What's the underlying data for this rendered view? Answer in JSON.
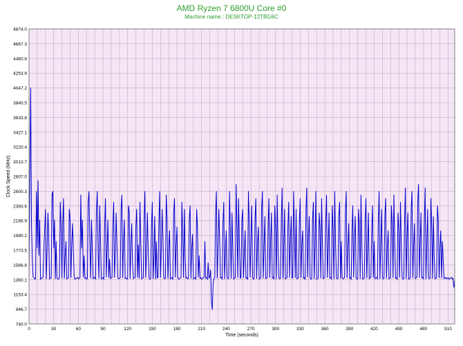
{
  "chart_data": {
    "type": "line",
    "title": "AMD Ryzen 7 6800U Core #0",
    "subtitle": "Machine name : DESKTOP-12TBG6C",
    "xlabel": "Time (seconds)",
    "ylabel": "Clock Speed (MHz)",
    "xlim": [
      0,
      518
    ],
    "ylim": [
      740.0,
      4874.0
    ],
    "x_ticks": [
      0,
      30,
      60,
      90,
      120,
      150,
      180,
      210,
      240,
      270,
      300,
      330,
      360,
      390,
      420,
      450,
      480,
      510
    ],
    "y_ticks": [
      "740.0",
      "946.7",
      "1153.4",
      "1360.1",
      "1566.8",
      "1773.5",
      "1980.2",
      "2186.9",
      "2393.6",
      "2600.3",
      "2807.0",
      "3013.7",
      "3220.4",
      "3427.1",
      "3633.8",
      "3840.5",
      "4047.2",
      "4253.9",
      "4460.6",
      "4667.3",
      "4874.0"
    ],
    "grid": true,
    "series": [
      {
        "color": "#0000cc",
        "baseline_mhz": 1380,
        "spikes": [
          [
            1,
            2800
          ],
          [
            2,
            4050
          ],
          [
            3,
            2100
          ],
          [
            4,
            1650
          ],
          [
            5,
            1400
          ],
          [
            9,
            2600
          ],
          [
            10,
            1800
          ],
          [
            11,
            2750
          ],
          [
            12,
            1700
          ],
          [
            13,
            2200
          ],
          [
            18,
            1750
          ],
          [
            19,
            2050
          ],
          [
            20,
            2350
          ],
          [
            22,
            1800
          ],
          [
            23,
            2300
          ],
          [
            24,
            1950
          ],
          [
            28,
            2550
          ],
          [
            29,
            2600
          ],
          [
            30,
            1800
          ],
          [
            31,
            2200
          ],
          [
            33,
            1900
          ],
          [
            38,
            2450
          ],
          [
            39,
            2100
          ],
          [
            41,
            2150
          ],
          [
            42,
            2500
          ],
          [
            44,
            1700
          ],
          [
            45,
            1900
          ],
          [
            49,
            2350
          ],
          [
            50,
            2200
          ],
          [
            52,
            1850
          ],
          [
            53,
            2150
          ],
          [
            54,
            1750
          ],
          [
            63,
            2550
          ],
          [
            64,
            1800
          ],
          [
            65,
            2200
          ],
          [
            67,
            1700
          ],
          [
            72,
            2450
          ],
          [
            73,
            2600
          ],
          [
            74,
            1900
          ],
          [
            76,
            2200
          ],
          [
            77,
            1800
          ],
          [
            82,
            2300
          ],
          [
            83,
            2600
          ],
          [
            84,
            1800
          ],
          [
            86,
            2400
          ],
          [
            87,
            1900
          ],
          [
            92,
            2100
          ],
          [
            93,
            2500
          ],
          [
            95,
            1800
          ],
          [
            96,
            2200
          ],
          [
            98,
            1650
          ],
          [
            102,
            2100
          ],
          [
            103,
            2450
          ],
          [
            105,
            1750
          ],
          [
            106,
            2300
          ],
          [
            107,
            1850
          ],
          [
            112,
            2350
          ],
          [
            113,
            2550
          ],
          [
            115,
            1900
          ],
          [
            116,
            2200
          ],
          [
            121,
            2400
          ],
          [
            122,
            2300
          ],
          [
            124,
            1850
          ],
          [
            125,
            2150
          ],
          [
            126,
            1600
          ],
          [
            130,
            2100
          ],
          [
            131,
            2350
          ],
          [
            133,
            1850
          ],
          [
            135,
            2450
          ],
          [
            136,
            1900
          ],
          [
            140,
            2200
          ],
          [
            141,
            2600
          ],
          [
            143,
            1750
          ],
          [
            144,
            2300
          ],
          [
            145,
            1800
          ],
          [
            149,
            2100
          ],
          [
            150,
            2450
          ],
          [
            152,
            1700
          ],
          [
            153,
            2250
          ],
          [
            155,
            1900
          ],
          [
            158,
            2150
          ],
          [
            159,
            2600
          ],
          [
            161,
            1800
          ],
          [
            162,
            2350
          ],
          [
            163,
            1950
          ],
          [
            167,
            2550
          ],
          [
            168,
            2200
          ],
          [
            170,
            1800
          ],
          [
            171,
            2050
          ],
          [
            176,
            2300
          ],
          [
            177,
            2500
          ],
          [
            179,
            1850
          ],
          [
            180,
            2100
          ],
          [
            186,
            2450
          ],
          [
            187,
            2000
          ],
          [
            189,
            2350
          ],
          [
            190,
            1700
          ],
          [
            195,
            2200
          ],
          [
            196,
            2400
          ],
          [
            198,
            1800
          ],
          [
            199,
            2000
          ],
          [
            204,
            2350
          ],
          [
            205,
            2100
          ],
          [
            207,
            1700
          ],
          [
            214,
            1900
          ],
          [
            218,
            1600
          ],
          [
            221,
            1500
          ],
          [
            227,
            2250
          ],
          [
            228,
            2600
          ],
          [
            230,
            1800
          ],
          [
            231,
            2350
          ],
          [
            232,
            1900
          ],
          [
            236,
            2150
          ],
          [
            237,
            2450
          ],
          [
            239,
            1750
          ],
          [
            240,
            2050
          ],
          [
            244,
            2600
          ],
          [
            245,
            2000
          ],
          [
            247,
            2300
          ],
          [
            248,
            1800
          ],
          [
            252,
            2700
          ],
          [
            253,
            2100
          ],
          [
            255,
            2500
          ],
          [
            256,
            1900
          ],
          [
            259,
            2200
          ],
          [
            260,
            2350
          ],
          [
            262,
            1750
          ],
          [
            263,
            2050
          ],
          [
            267,
            2600
          ],
          [
            268,
            2150
          ],
          [
            270,
            1900
          ],
          [
            271,
            2400
          ],
          [
            275,
            2200
          ],
          [
            276,
            2500
          ],
          [
            278,
            1850
          ],
          [
            279,
            2100
          ],
          [
            283,
            2350
          ],
          [
            284,
            2600
          ],
          [
            286,
            1800
          ],
          [
            287,
            2250
          ],
          [
            291,
            2150
          ],
          [
            292,
            2500
          ],
          [
            294,
            1900
          ],
          [
            295,
            2300
          ],
          [
            299,
            2400
          ],
          [
            300,
            2050
          ],
          [
            302,
            2550
          ],
          [
            303,
            1850
          ],
          [
            307,
            2200
          ],
          [
            308,
            2650
          ],
          [
            310,
            1800
          ],
          [
            311,
            2350
          ],
          [
            315,
            2100
          ],
          [
            316,
            2450
          ],
          [
            318,
            1900
          ],
          [
            319,
            2250
          ],
          [
            322,
            2600
          ],
          [
            323,
            2000
          ],
          [
            325,
            2350
          ],
          [
            329,
            2150
          ],
          [
            330,
            2500
          ],
          [
            332,
            1850
          ],
          [
            333,
            2050
          ],
          [
            337,
            2350
          ],
          [
            338,
            2650
          ],
          [
            340,
            1950
          ],
          [
            341,
            2250
          ],
          [
            345,
            2200
          ],
          [
            346,
            2450
          ],
          [
            348,
            1800
          ],
          [
            349,
            2600
          ],
          [
            353,
            2300
          ],
          [
            354,
            2100
          ],
          [
            356,
            2500
          ],
          [
            357,
            1900
          ],
          [
            361,
            2150
          ],
          [
            362,
            2550
          ],
          [
            364,
            1800
          ],
          [
            365,
            2300
          ],
          [
            369,
            2400
          ],
          [
            370,
            2050
          ],
          [
            372,
            2600
          ],
          [
            373,
            1850
          ],
          [
            377,
            2250
          ],
          [
            378,
            2450
          ],
          [
            380,
            1900
          ],
          [
            385,
            2300
          ],
          [
            386,
            2600
          ],
          [
            388,
            1800
          ],
          [
            389,
            2150
          ],
          [
            393,
            2050
          ],
          [
            394,
            2400
          ],
          [
            396,
            1950
          ],
          [
            397,
            2250
          ],
          [
            401,
            2350
          ],
          [
            402,
            2100
          ],
          [
            404,
            2550
          ],
          [
            405,
            1850
          ],
          [
            409,
            2200
          ],
          [
            410,
            2500
          ],
          [
            412,
            1800
          ],
          [
            413,
            2300
          ],
          [
            417,
            2050
          ],
          [
            418,
            2400
          ],
          [
            420,
            1900
          ],
          [
            425,
            2150
          ],
          [
            426,
            2600
          ],
          [
            428,
            1850
          ],
          [
            429,
            2350
          ],
          [
            433,
            2250
          ],
          [
            434,
            2500
          ],
          [
            436,
            1800
          ],
          [
            437,
            2050
          ],
          [
            441,
            2400
          ],
          [
            442,
            2150
          ],
          [
            444,
            2550
          ],
          [
            445,
            1900
          ],
          [
            449,
            2300
          ],
          [
            450,
            2050
          ],
          [
            452,
            2450
          ],
          [
            453,
            1850
          ],
          [
            457,
            2200
          ],
          [
            458,
            2650
          ],
          [
            460,
            1950
          ],
          [
            461,
            2300
          ],
          [
            465,
            2350
          ],
          [
            466,
            2600
          ],
          [
            468,
            1800
          ],
          [
            469,
            2150
          ],
          [
            473,
            2450
          ],
          [
            474,
            2700
          ],
          [
            476,
            1900
          ],
          [
            477,
            2300
          ],
          [
            481,
            2150
          ],
          [
            482,
            2650
          ],
          [
            484,
            1850
          ],
          [
            485,
            2350
          ],
          [
            489,
            2500
          ],
          [
            490,
            2100
          ],
          [
            492,
            2250
          ],
          [
            493,
            1700
          ],
          [
            497,
            2400
          ],
          [
            498,
            2200
          ],
          [
            500,
            1800
          ],
          [
            501,
            2050
          ],
          [
            503,
            1900
          ],
          [
            504,
            1650
          ]
        ],
        "dips": [
          [
            222,
            1050
          ],
          [
            223,
            940
          ],
          [
            224,
            1300
          ],
          [
            517,
            1250
          ]
        ]
      }
    ]
  }
}
